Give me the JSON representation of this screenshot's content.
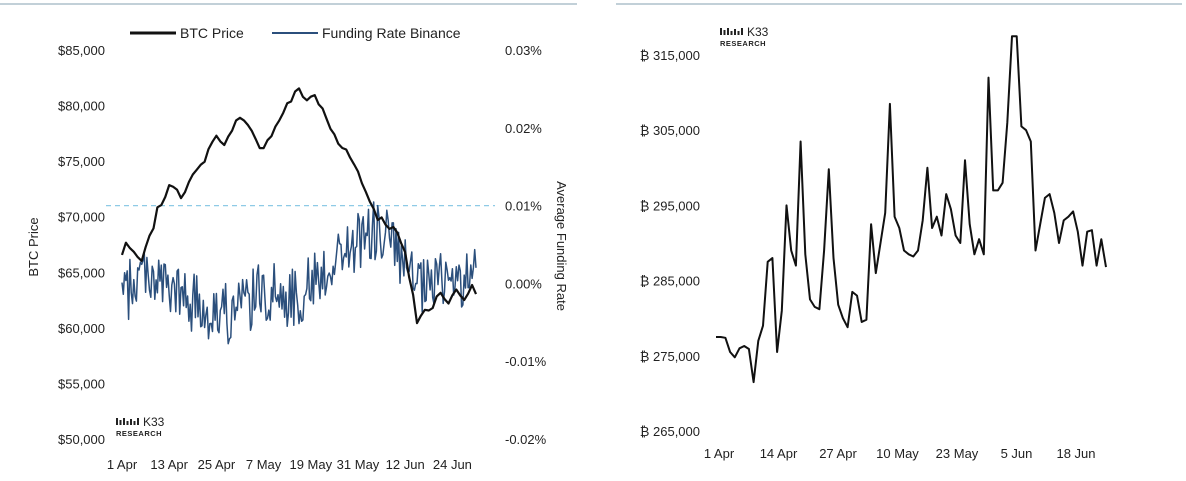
{
  "logo": {
    "name": "K33",
    "sub": "RESEARCH"
  },
  "chart_data": [
    {
      "type": "line",
      "legend": [
        "BTC Price",
        "Funding Rate Binance"
      ],
      "ylabel": "BTC Price",
      "y2label": "Average Funding Rate",
      "x_tick_labels": [
        "1 Apr",
        "13 Apr",
        "25 Apr",
        "7 May",
        "19 May",
        "31 May",
        "12 Jun",
        "24 Jun"
      ],
      "y_tick_labels": [
        "$50,000",
        "$55,000",
        "$60,000",
        "$65,000",
        "$70,000",
        "$75,000",
        "$80,000",
        "$85,000"
      ],
      "y2_tick_labels": [
        "-0.02%",
        "-0.01%",
        "0.00%",
        "0.01%",
        "0.02%",
        "0.03%"
      ],
      "ylim": [
        50000,
        85000
      ],
      "y2lim": [
        -0.02,
        0.03
      ],
      "reference_line": {
        "axis": "y2",
        "value": 0.01,
        "style": "dashed"
      },
      "colors": {
        "btc": "#111111",
        "funding": "#2b4f7c",
        "reference": "#8ecae6"
      },
      "series": [
        {
          "name": "BTC Price",
          "axis": "y",
          "anchors": [
            [
              0,
              66500
            ],
            [
              1,
              67800
            ],
            [
              3,
              66500
            ],
            [
              5,
              66000
            ],
            [
              7,
              68000
            ],
            [
              9,
              70500
            ],
            [
              11,
              72000
            ],
            [
              13,
              73000
            ],
            [
              15,
              72000
            ],
            [
              18,
              73500
            ],
            [
              20,
              74500
            ],
            [
              22,
              76000
            ],
            [
              24,
              77500
            ],
            [
              25,
              76500
            ],
            [
              27,
              77000
            ],
            [
              29,
              79000
            ],
            [
              31,
              78500
            ],
            [
              33,
              77500
            ],
            [
              35,
              76000
            ],
            [
              37,
              77000
            ],
            [
              39,
              78000
            ],
            [
              41,
              79500
            ],
            [
              43,
              80500
            ],
            [
              45,
              81500
            ],
            [
              47,
              80500
            ],
            [
              49,
              81000
            ],
            [
              51,
              79500
            ],
            [
              53,
              78000
            ],
            [
              55,
              76500
            ],
            [
              57,
              76000
            ],
            [
              59,
              75000
            ],
            [
              61,
              73000
            ],
            [
              63,
              71500
            ],
            [
              65,
              70000
            ],
            [
              67,
              69500
            ],
            [
              70,
              68500
            ],
            [
              72,
              66500
            ],
            [
              74,
              63000
            ],
            [
              75,
              60500
            ],
            [
              77,
              61500
            ],
            [
              79,
              62000
            ],
            [
              81,
              63500
            ],
            [
              83,
              62000
            ],
            [
              85,
              63500
            ],
            [
              87,
              62500
            ],
            [
              89,
              64000
            ],
            [
              90,
              62800
            ]
          ],
          "noise": 700
        },
        {
          "name": "Funding Rate Binance",
          "axis": "y2",
          "anchors": [
            [
              0,
              -0.002
            ],
            [
              6,
              0.002
            ],
            [
              12,
              -0.001
            ],
            [
              20,
              -0.003
            ],
            [
              28,
              -0.004
            ],
            [
              36,
              -0.001
            ],
            [
              44,
              -0.002
            ],
            [
              50,
              0.001
            ],
            [
              56,
              0.004
            ],
            [
              62,
              0.006
            ],
            [
              66,
              0.007
            ],
            [
              70,
              0.004
            ],
            [
              74,
              0.0
            ],
            [
              78,
              -0.001
            ],
            [
              82,
              0.001
            ],
            [
              86,
              0.0
            ],
            [
              90,
              0.001
            ]
          ],
          "noise": 0.004
        }
      ]
    },
    {
      "type": "line",
      "x_tick_labels": [
        "1 Apr",
        "14 Apr",
        "27 Apr",
        "10 May",
        "23 May",
        "5 Jun",
        "18 Jun"
      ],
      "y_tick_labels": [
        "₿ 265,000",
        "₿ 275,000",
        "₿ 285,000",
        "₿ 295,000",
        "₿ 305,000",
        "₿ 315,000"
      ],
      "ylim": [
        265000,
        315000
      ],
      "series": [
        {
          "values": [
            [
              0,
              277500
            ],
            [
              1,
              277500
            ],
            [
              2,
              277400
            ],
            [
              3,
              275500
            ],
            [
              4,
              274800
            ],
            [
              5,
              276000
            ],
            [
              6,
              276300
            ],
            [
              7,
              275900
            ],
            [
              8,
              271500
            ],
            [
              9,
              277000
            ],
            [
              10,
              279000
            ],
            [
              11,
              287500
            ],
            [
              12,
              288000
            ],
            [
              13,
              275500
            ],
            [
              14,
              281000
            ],
            [
              15,
              295000
            ],
            [
              16,
              289000
            ],
            [
              17,
              287000
            ],
            [
              18,
              303500
            ],
            [
              19,
              288500
            ],
            [
              20,
              282500
            ],
            [
              21,
              281500
            ],
            [
              22,
              281200
            ],
            [
              23,
              289000
            ],
            [
              24,
              299800
            ],
            [
              25,
              288000
            ],
            [
              26,
              281800
            ],
            [
              27,
              280000
            ],
            [
              28,
              278800
            ],
            [
              29,
              283500
            ],
            [
              30,
              283000
            ],
            [
              31,
              279500
            ],
            [
              32,
              279800
            ],
            [
              33,
              292500
            ],
            [
              34,
              286000
            ],
            [
              35,
              290000
            ],
            [
              36,
              294000
            ],
            [
              37,
              308500
            ],
            [
              38,
              293500
            ],
            [
              39,
              292000
            ],
            [
              40,
              289000
            ],
            [
              41,
              288500
            ],
            [
              42,
              288200
            ],
            [
              43,
              289000
            ],
            [
              44,
              293000
            ],
            [
              45,
              300000
            ],
            [
              46,
              292000
            ],
            [
              47,
              293500
            ],
            [
              48,
              291000
            ],
            [
              49,
              296500
            ],
            [
              50,
              294500
            ],
            [
              51,
              291000
            ],
            [
              52,
              290000
            ],
            [
              53,
              301000
            ],
            [
              54,
              292500
            ],
            [
              55,
              288500
            ],
            [
              56,
              290500
            ],
            [
              57,
              288500
            ],
            [
              58,
              312000
            ],
            [
              59,
              297000
            ],
            [
              60,
              297000
            ],
            [
              61,
              298000
            ],
            [
              62,
              306000
            ],
            [
              63,
              317500
            ],
            [
              64,
              317500
            ],
            [
              65,
              305500
            ],
            [
              66,
              305000
            ],
            [
              67,
              303500
            ],
            [
              68,
              289000
            ],
            [
              69,
              292500
            ],
            [
              70,
              296000
            ],
            [
              71,
              296500
            ],
            [
              72,
              294000
            ],
            [
              73,
              290000
            ],
            [
              74,
              293000
            ],
            [
              75,
              293500
            ],
            [
              76,
              294200
            ],
            [
              77,
              291500
            ],
            [
              78,
              287000
            ],
            [
              79,
              291500
            ],
            [
              80,
              291700
            ],
            [
              81,
              287000
            ],
            [
              82,
              290500
            ],
            [
              83,
              286800
            ]
          ]
        }
      ]
    }
  ]
}
